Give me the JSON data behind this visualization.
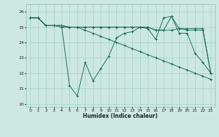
{
  "xlabel": "Humidex (Indice chaleur)",
  "bg_color": "#cce8e0",
  "grid_color": "#99ccbb",
  "line_color": "#1a6b55",
  "xlim": [
    -0.5,
    23.5
  ],
  "ylim": [
    19.8,
    26.5
  ],
  "yticks": [
    20,
    21,
    22,
    23,
    24,
    25,
    26
  ],
  "xticks": [
    0,
    1,
    2,
    3,
    4,
    5,
    6,
    7,
    8,
    9,
    10,
    11,
    12,
    13,
    14,
    15,
    16,
    17,
    18,
    19,
    20,
    21,
    22,
    23
  ],
  "series": [
    [
      25.6,
      25.6,
      25.1,
      25.1,
      25.1,
      21.2,
      20.5,
      22.7,
      21.5,
      22.3,
      23.1,
      24.3,
      24.6,
      24.7,
      25.0,
      24.9,
      24.2,
      25.6,
      25.7,
      24.6,
      24.6,
      23.3,
      22.7,
      22.0
    ],
    [
      25.6,
      25.6,
      25.1,
      25.1,
      25.1,
      25.0,
      25.0,
      25.0,
      25.0,
      25.0,
      25.0,
      25.0,
      25.0,
      25.0,
      25.0,
      25.0,
      24.8,
      24.8,
      25.7,
      24.9,
      24.9,
      24.9,
      24.9,
      22.0
    ],
    [
      25.6,
      25.6,
      25.1,
      25.1,
      25.0,
      25.0,
      25.0,
      24.8,
      24.6,
      24.4,
      24.2,
      24.0,
      23.8,
      23.6,
      23.4,
      23.2,
      23.0,
      22.8,
      22.6,
      22.4,
      22.2,
      22.0,
      21.8,
      21.6
    ],
    [
      25.6,
      25.6,
      25.1,
      25.1,
      25.1,
      25.0,
      25.0,
      25.0,
      25.0,
      25.0,
      25.0,
      25.0,
      25.0,
      25.0,
      25.0,
      25.0,
      24.8,
      24.8,
      24.8,
      24.9,
      24.8,
      24.8,
      24.8,
      22.0
    ]
  ]
}
